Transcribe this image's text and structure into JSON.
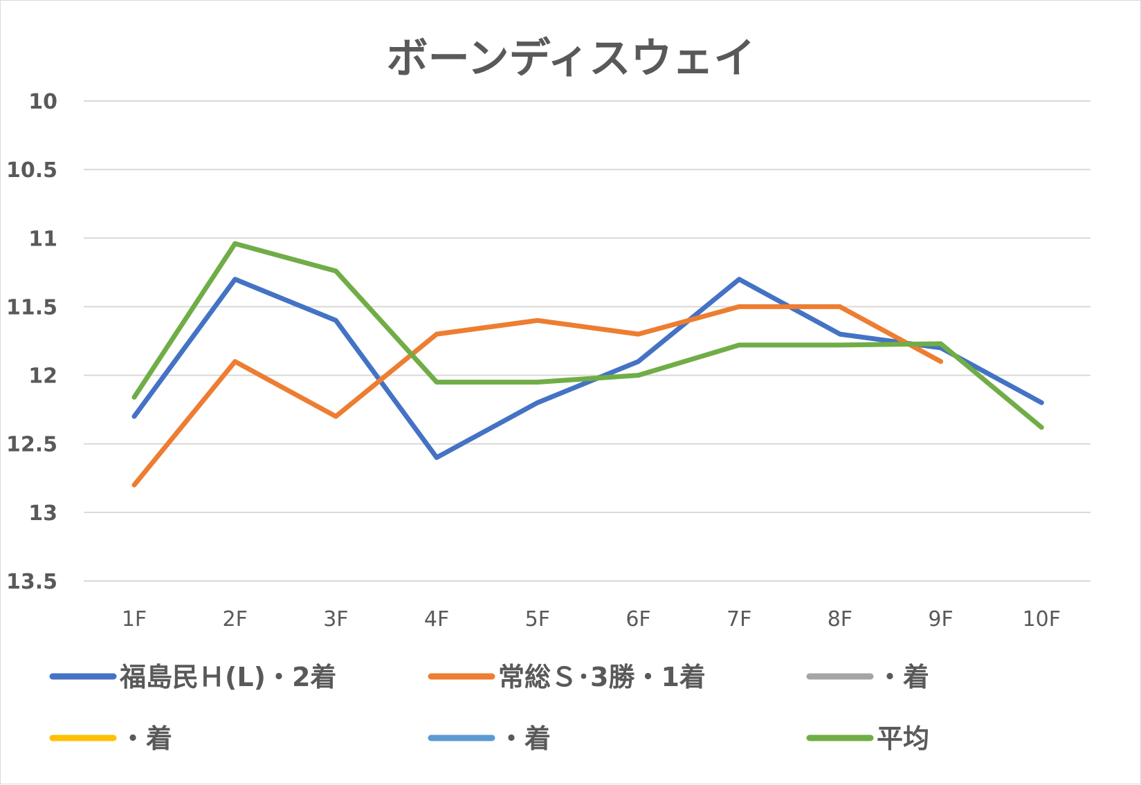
{
  "chart_data": {
    "type": "line",
    "title": "ボーンディスウェイ",
    "xlabel": "",
    "ylabel": "",
    "categories": [
      "1F",
      "2F",
      "3F",
      "4F",
      "5F",
      "6F",
      "7F",
      "8F",
      "9F",
      "10F"
    ],
    "ylim": [
      10,
      13.5
    ],
    "y_inverted": true,
    "yticks": [
      "10",
      "10.5",
      "11",
      "11.5",
      "12",
      "12.5",
      "13",
      "13.5"
    ],
    "grid": true,
    "legend_position": "bottom",
    "series": [
      {
        "name": "福島民Ｈ(L)・2着",
        "color": "#4472c4",
        "values": [
          12.3,
          11.3,
          11.6,
          12.6,
          12.2,
          11.9,
          11.3,
          11.7,
          11.8,
          12.2
        ]
      },
      {
        "name": "常総Ｓ･3勝・1着",
        "color": "#ed7d31",
        "values": [
          12.8,
          11.9,
          12.3,
          11.7,
          11.6,
          11.7,
          11.5,
          11.5,
          11.9,
          null
        ]
      },
      {
        "name": "・着",
        "color": "#a5a5a5",
        "values": [
          null,
          null,
          null,
          null,
          null,
          null,
          null,
          null,
          null,
          null
        ]
      },
      {
        "name": "・着",
        "color": "#ffc000",
        "values": [
          null,
          null,
          null,
          null,
          null,
          null,
          null,
          null,
          null,
          null
        ]
      },
      {
        "name": "・着",
        "color": "#5b9bd5",
        "values": [
          null,
          null,
          null,
          null,
          null,
          null,
          null,
          null,
          null,
          null
        ]
      },
      {
        "name": "平均",
        "color": "#70ad47",
        "values": [
          12.16,
          11.04,
          11.24,
          12.05,
          12.05,
          12.0,
          11.78,
          11.78,
          11.77,
          12.38
        ]
      }
    ]
  }
}
